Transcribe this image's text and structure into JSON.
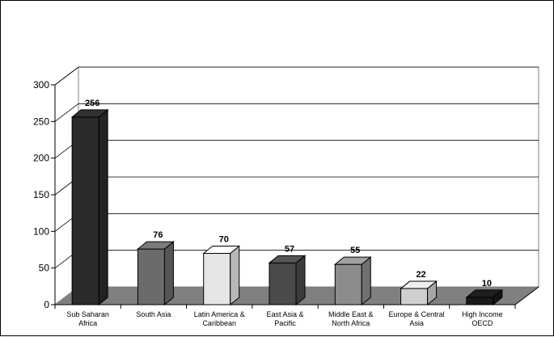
{
  "chart_data": {
    "type": "bar",
    "title": "",
    "xlabel": "",
    "ylabel": "",
    "ylim": [
      0,
      300
    ],
    "yticks": [
      "0",
      "50",
      "100",
      "150",
      "200",
      "250",
      "300"
    ],
    "grid": true,
    "legend": "none",
    "categories": [
      [
        "Sub Saharan",
        "Africa"
      ],
      [
        "South Asia"
      ],
      [
        "Latin America &",
        "Caribbean"
      ],
      [
        "East Asia &",
        "Pacific"
      ],
      [
        "Middle East &",
        "North Africa"
      ],
      [
        "Europe & Central",
        "Asia"
      ],
      [
        "High Income",
        "OECD"
      ]
    ],
    "values": [
      256,
      76,
      70,
      57,
      55,
      22,
      10
    ],
    "data_labels": [
      "256",
      "76",
      "70",
      "57",
      "55",
      "22",
      "10"
    ],
    "colors": [
      "#2b2b2b",
      "#6b6b6b",
      "#e6e6e6",
      "#4a4a4a",
      "#8c8c8c",
      "#cfcfcf",
      "#1a1a1a"
    ],
    "floor_color": "#808080",
    "wall_color": "#ffffff",
    "grid_color": "#000000"
  }
}
